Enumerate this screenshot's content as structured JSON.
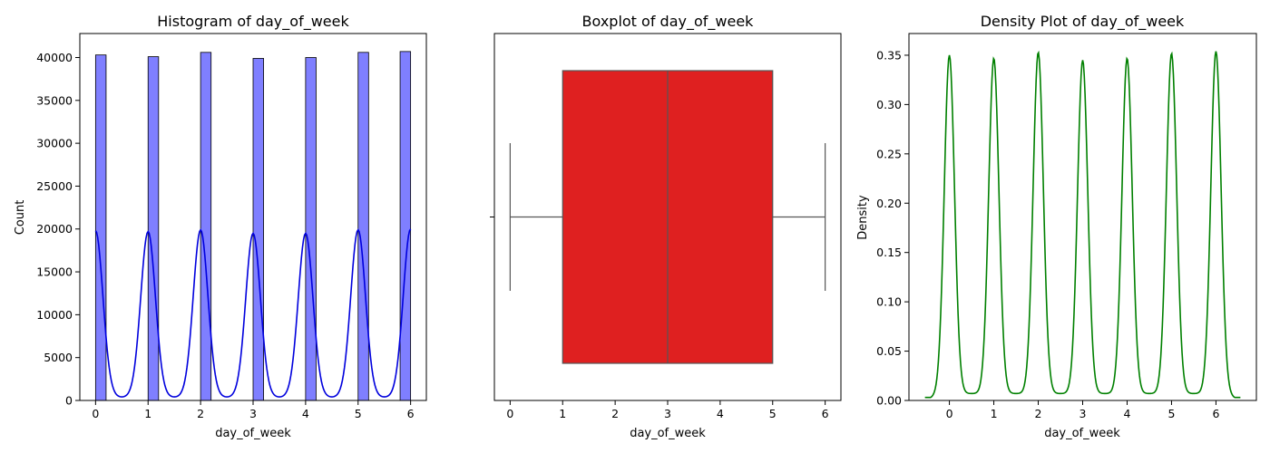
{
  "chart_data": [
    {
      "type": "bar",
      "title": "Histogram of day_of_week",
      "xlabel": "day_of_week",
      "ylabel": "Count",
      "xlim": [
        -0.3,
        6.3
      ],
      "ylim": [
        0,
        42800
      ],
      "xticks": [
        0,
        1,
        2,
        3,
        4,
        5,
        6
      ],
      "yticks": [
        0,
        5000,
        10000,
        15000,
        20000,
        25000,
        30000,
        35000,
        40000
      ],
      "bar_color": "#7f7fff",
      "edge_color": "#000000",
      "bars": [
        {
          "x": 0,
          "count": 40300
        },
        {
          "x": 1,
          "count": 40100
        },
        {
          "x": 2,
          "count": 40600
        },
        {
          "x": 3,
          "count": 39900
        },
        {
          "x": 4,
          "count": 40000
        },
        {
          "x": 5,
          "count": 40600
        },
        {
          "x": 6,
          "count": 40700
        }
      ],
      "kde_color": "#0000dd",
      "kde_peaks": [
        19800,
        19700,
        19900,
        19500,
        19500,
        19900,
        20000
      ],
      "kde_floor": 350
    },
    {
      "type": "box",
      "title": "Boxplot of day_of_week",
      "xlabel": "day_of_week",
      "xlim": [
        -0.3,
        6.3
      ],
      "xticks": [
        0,
        1,
        2,
        3,
        4,
        5,
        6
      ],
      "box_color": "#df2020",
      "line_color": "#555555",
      "stats": {
        "whisker_low": 0,
        "q1": 1,
        "median": 3,
        "q3": 5,
        "whisker_high": 6
      }
    },
    {
      "type": "line",
      "title": "Density Plot of day_of_week",
      "xlabel": "day_of_week",
      "ylabel": "Density",
      "xlim": [
        -0.91,
        6.91
      ],
      "ylim": [
        0,
        0.372
      ],
      "xticks": [
        0,
        1,
        2,
        3,
        4,
        5,
        6
      ],
      "yticks": [
        0.0,
        0.05,
        0.1,
        0.15,
        0.2,
        0.25,
        0.3,
        0.35
      ],
      "ytick_labels": [
        "0.00",
        "0.05",
        "0.10",
        "0.15",
        "0.20",
        "0.25",
        "0.30",
        "0.35"
      ],
      "line_color": "#008000",
      "x_range": [
        -0.55,
        6.55
      ],
      "peaks": [
        0.35,
        0.347,
        0.353,
        0.345,
        0.347,
        0.352,
        0.354
      ],
      "floor": 0.007
    }
  ]
}
